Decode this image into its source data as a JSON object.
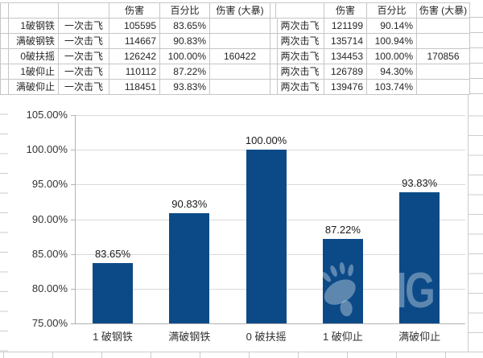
{
  "table": {
    "header": [
      "",
      "",
      "",
      "伤害",
      "百分比",
      "伤害 (大暴)",
      "",
      "",
      "伤害",
      "百分比",
      "伤害 (大暴)"
    ],
    "rows": [
      [
        "",
        "1破钢铁",
        "一次击飞",
        "105595",
        "83.65%",
        "",
        "",
        "两次击飞",
        "121199",
        "90.14%",
        ""
      ],
      [
        "",
        "满破钢铁",
        "一次击飞",
        "114667",
        "90.83%",
        "",
        "",
        "两次击飞",
        "135714",
        "100.94%",
        ""
      ],
      [
        "",
        "0破扶摇",
        "一次击飞",
        "126242",
        "100.00%",
        "160422",
        "",
        "两次击飞",
        "134453",
        "100.00%",
        "170856"
      ],
      [
        "",
        "1破仰止",
        "一次击飞",
        "110112",
        "87.22%",
        "",
        "",
        "两次击飞",
        "126789",
        "94.30%",
        ""
      ],
      [
        "",
        "满破仰止",
        "一次击飞",
        "118451",
        "93.83%",
        "",
        "",
        "两次击飞",
        "139476",
        "103.74%",
        ""
      ]
    ]
  },
  "chart_data": {
    "type": "bar",
    "categories": [
      "1 破钢铁",
      "满破钢铁",
      "0 破扶摇",
      "1 破仰止",
      "满破仰止"
    ],
    "values": [
      83.65,
      90.83,
      100.0,
      87.22,
      93.83
    ],
    "data_labels": [
      "83.65%",
      "90.83%",
      "100.00%",
      "87.22%",
      "93.83%"
    ],
    "yticks": [
      "105.00%",
      "100.00%",
      "95.00%",
      "90.00%",
      "85.00%",
      "80.00%",
      "75.00%"
    ],
    "ylim": [
      75,
      105
    ],
    "title": "",
    "xlabel": "",
    "ylabel": "",
    "grid": true,
    "legend": false,
    "bar_color": "#0C4A87"
  },
  "watermark": {
    "text": "IG"
  }
}
